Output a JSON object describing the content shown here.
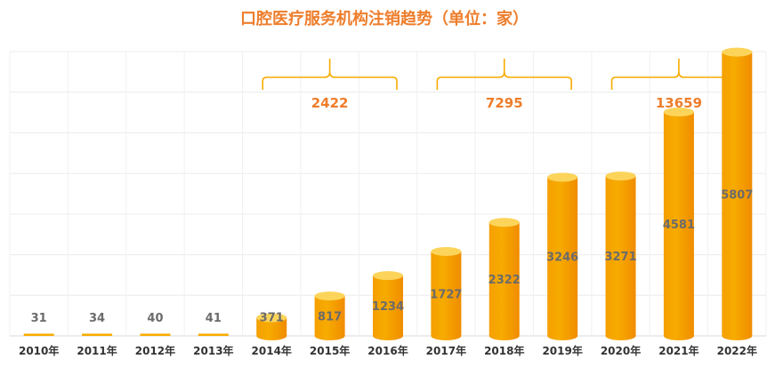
{
  "title": "口腔医疗服务机构注销趋势（单位：家）",
  "chart_data": {
    "type": "bar",
    "title": "口腔医疗服务机构注销趋势（单位：家）",
    "categories": [
      "2010年",
      "2011年",
      "2012年",
      "2013年",
      "2014年",
      "2015年",
      "2016年",
      "2017年",
      "2018年",
      "2019年",
      "2020年",
      "2021年",
      "2022年"
    ],
    "values": [
      31,
      34,
      40,
      41,
      371,
      817,
      1234,
      1727,
      2322,
      3246,
      3271,
      4581,
      5807
    ],
    "ylim": [
      0,
      6000
    ],
    "grid": true,
    "bar_color": "#f7ab00",
    "bar_top_color": "#fcd45a",
    "accent_color": "#ee7d2b",
    "group_totals": [
      {
        "label": "2422",
        "from": "2014年",
        "to": "2016年"
      },
      {
        "label": "7295",
        "from": "2017年",
        "to": "2019年"
      },
      {
        "label": "13659",
        "from": "2020年",
        "to": "2022年"
      }
    ]
  }
}
